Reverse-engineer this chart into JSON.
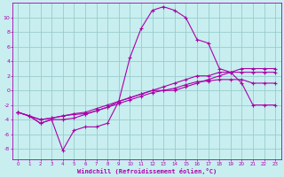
{
  "xlabel": "Windchill (Refroidissement éolien,°C)",
  "bg_color": "#c8eef0",
  "line_color": "#aa00aa",
  "grid_color": "#99cccc",
  "xlim": [
    -0.5,
    23.5
  ],
  "ylim": [
    -9.5,
    12
  ],
  "yticks": [
    -8,
    -6,
    -4,
    -2,
    0,
    2,
    4,
    6,
    8,
    10
  ],
  "xticks": [
    0,
    1,
    2,
    3,
    4,
    5,
    6,
    7,
    8,
    9,
    10,
    11,
    12,
    13,
    14,
    15,
    16,
    17,
    18,
    19,
    20,
    21,
    22,
    23
  ],
  "series": [
    {
      "x": [
        0,
        1,
        2,
        3,
        4,
        5,
        6,
        7,
        8,
        9,
        10,
        11,
        12,
        13,
        14,
        15,
        16,
        17,
        18,
        19,
        20,
        21,
        22,
        23
      ],
      "y": [
        -3,
        -3.5,
        -4.5,
        -4,
        -8.2,
        -5.5,
        -5,
        -5,
        -4.5,
        -1.5,
        4.5,
        8.5,
        11,
        11.5,
        11,
        10,
        7,
        6.5,
        3,
        2.5,
        1,
        -2,
        -2,
        -2
      ]
    },
    {
      "x": [
        0,
        1,
        2,
        3,
        4,
        5,
        6,
        7,
        8,
        9,
        10,
        11,
        12,
        13,
        14,
        15,
        16,
        17,
        18,
        19,
        20,
        21,
        22,
        23
      ],
      "y": [
        -3,
        -3.5,
        -4,
        -3.8,
        -3.5,
        -3.2,
        -3,
        -2.5,
        -2,
        -1.5,
        -1,
        -0.5,
        0,
        0.5,
        1,
        1.5,
        2,
        2,
        2.5,
        2.5,
        2.5,
        2.5,
        2.5,
        2.5
      ]
    },
    {
      "x": [
        0,
        1,
        2,
        3,
        4,
        5,
        6,
        7,
        8,
        9,
        10,
        11,
        12,
        13,
        14,
        15,
        16,
        17,
        18,
        19,
        20,
        21,
        22,
        23
      ],
      "y": [
        -3,
        -3.5,
        -4,
        -3.8,
        -3.5,
        -3.3,
        -3.2,
        -2.8,
        -2.3,
        -1.8,
        -1.3,
        -0.8,
        -0.3,
        0,
        0.3,
        0.8,
        1.2,
        1.3,
        1.5,
        1.5,
        1.5,
        1,
        1,
        1
      ]
    },
    {
      "x": [
        0,
        1,
        2,
        3,
        4,
        5,
        6,
        7,
        8,
        9,
        10,
        11,
        12,
        13,
        14,
        15,
        16,
        17,
        18,
        19,
        20,
        21,
        22,
        23
      ],
      "y": [
        -3,
        -3.5,
        -4.5,
        -4,
        -4,
        -3.8,
        -3.3,
        -2.8,
        -2.3,
        -1.5,
        -1,
        -0.5,
        0,
        0,
        0,
        0.5,
        1,
        1.5,
        2,
        2.5,
        3,
        3,
        3,
        3
      ]
    }
  ]
}
